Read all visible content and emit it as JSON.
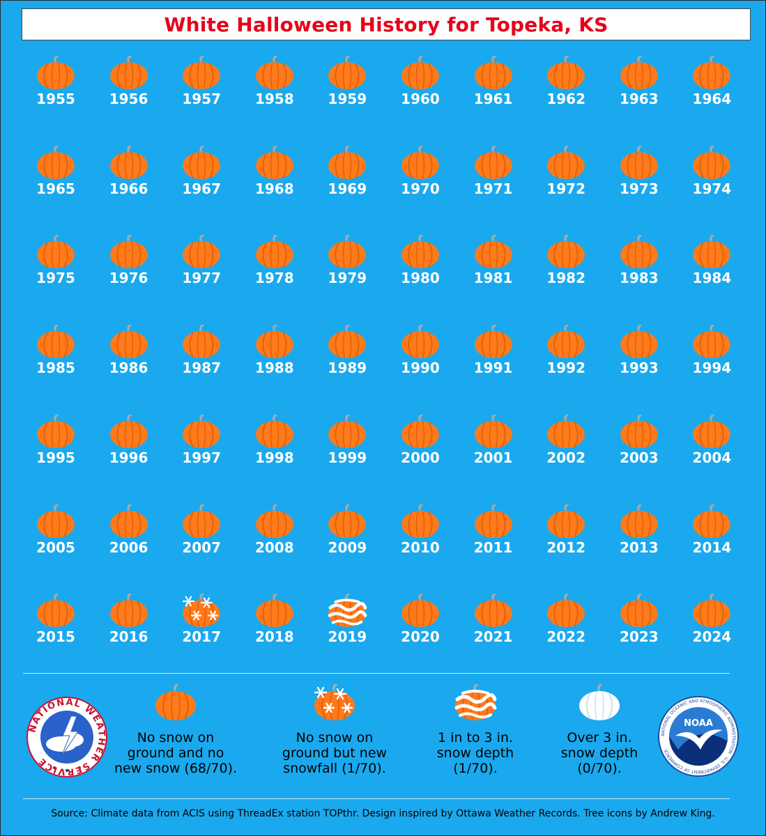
{
  "title": "White Halloween History for Topeka, KS",
  "chart_data": {
    "type": "table",
    "categories": {
      "none": "No snow on ground and no new snow (68/70).",
      "snowfall": "No snow on ground but new snowfall (1/70).",
      "depth_1_3": "1 in to 3 in. snow depth (1/70).",
      "depth_over_3": "Over 3 in. snow depth (0/70)."
    },
    "years": [
      1955,
      1956,
      1957,
      1958,
      1959,
      1960,
      1961,
      1962,
      1963,
      1964,
      1965,
      1966,
      1967,
      1968,
      1969,
      1970,
      1971,
      1972,
      1973,
      1974,
      1975,
      1976,
      1977,
      1978,
      1979,
      1980,
      1981,
      1982,
      1983,
      1984,
      1985,
      1986,
      1987,
      1988,
      1989,
      1990,
      1991,
      1992,
      1993,
      1994,
      1995,
      1996,
      1997,
      1998,
      1999,
      2000,
      2001,
      2002,
      2003,
      2004,
      2005,
      2006,
      2007,
      2008,
      2009,
      2010,
      2011,
      2012,
      2013,
      2014,
      2015,
      2016,
      2017,
      2018,
      2019,
      2020,
      2021,
      2022,
      2023,
      2024
    ],
    "status": {
      "2017": "snowfall",
      "2019": "depth_1_3"
    },
    "default_status": "none"
  },
  "legend": [
    {
      "key": "none",
      "lines": [
        "No snow on",
        "ground and no",
        "new snow (68/70)."
      ]
    },
    {
      "key": "snowfall",
      "lines": [
        "No snow on",
        "ground but new",
        "snowfall (1/70)."
      ]
    },
    {
      "key": "depth_1_3",
      "lines": [
        "1 in to 3 in.",
        "snow depth",
        "(1/70)."
      ]
    },
    {
      "key": "depth_over_3",
      "lines": [
        "Over 3 in.",
        "snow depth",
        "(0/70)."
      ]
    }
  ],
  "logos": {
    "nws_text": "NATIONAL WEATHER SERVICE",
    "noaa_text": "NOAA",
    "noaa_ring_text": "NATIONAL OCEANIC AND ATMOSPHERIC ADMINISTRATION · U.S. DEPARTMENT OF COMMERCE"
  },
  "source": "Source: Climate data from ACIS using ThreadEx station TOPthr. Design inspired by Ottawa Weather Records. Tree icons by Andrew King.",
  "colors": {
    "background": "#1aa9ee",
    "pumpkin": "#ff7a1a",
    "pumpkin_dark": "#e0600a",
    "stem": "#a9a9a9",
    "title": "#e8001c"
  }
}
